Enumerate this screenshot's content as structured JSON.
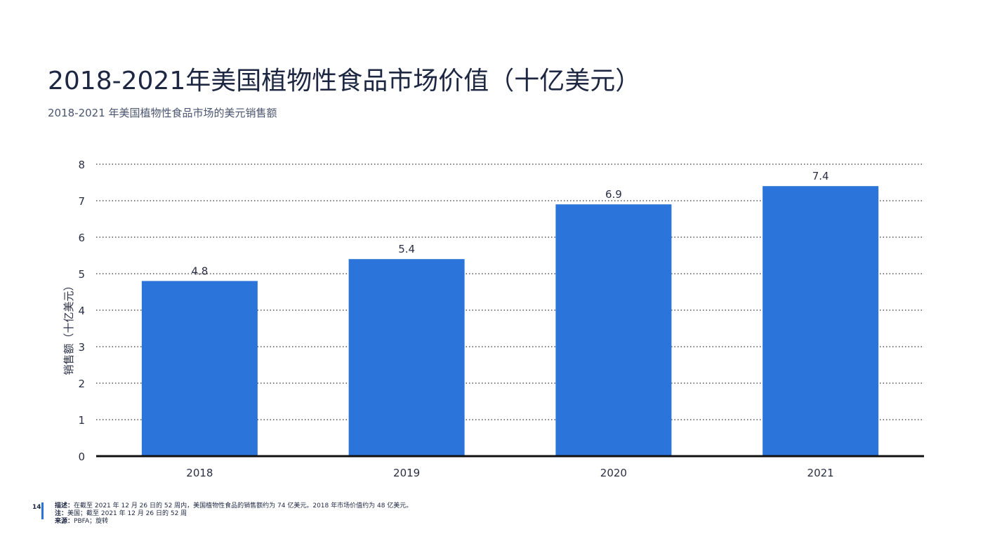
{
  "page": {
    "title": "2018-2021年美国植物性食品市场价值（十亿美元）",
    "subtitle": "2018-2021 年美国植物性食品市场的美元销售额",
    "page_number": "14",
    "notes": [
      {
        "label": "描述：",
        "text": "在截至 2021 年 12 月 26 日的 52 周内，美国植物性食品的销售额约为 74 亿美元。2018 年市场价值约为 48 亿美元。"
      },
      {
        "label": "注：",
        "text": "美国；截至 2021 年 12 月 26 日的 52 周"
      },
      {
        "label": "来源：",
        "text": "PBFA；旋转"
      }
    ]
  },
  "colors": {
    "bar": "#2a74da",
    "title": "#1d2742",
    "axis": "#111111",
    "grid": "#333333",
    "accent": "#2a74da"
  },
  "chart_data": {
    "type": "bar",
    "categories": [
      "2018",
      "2019",
      "2020",
      "2021"
    ],
    "values": [
      4.8,
      5.4,
      6.9,
      7.4
    ],
    "data_labels": [
      "4.8",
      "5.4",
      "6.9",
      "7.4"
    ],
    "title": "",
    "xlabel": "",
    "ylabel": "销售额（十亿美元）",
    "ylim": [
      0,
      8
    ],
    "yticks": [
      0,
      1,
      2,
      3,
      4,
      5,
      6,
      7,
      8
    ],
    "grid": "horizontal dotted",
    "legend": "none"
  }
}
